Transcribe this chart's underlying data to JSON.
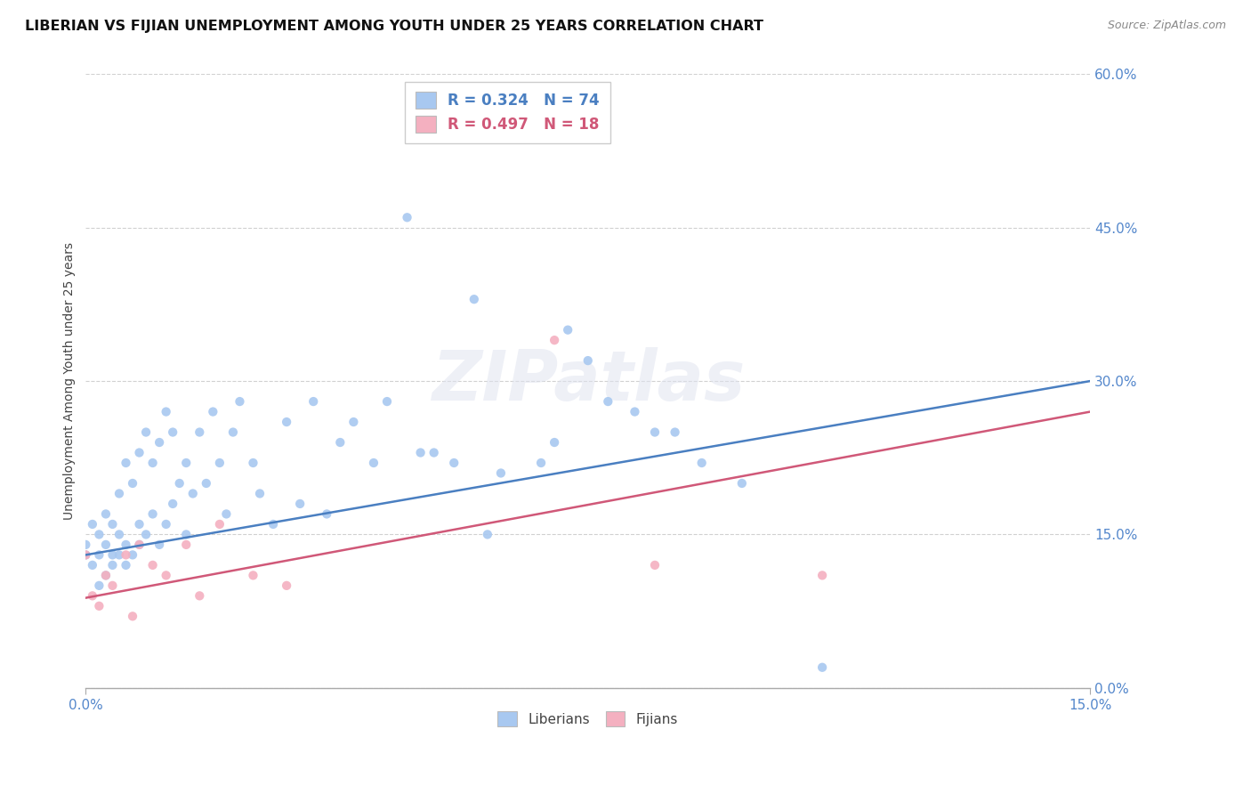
{
  "title": "LIBERIAN VS FIJIAN UNEMPLOYMENT AMONG YOUTH UNDER 25 YEARS CORRELATION CHART",
  "source": "Source: ZipAtlas.com",
  "ylabel_label": "Unemployment Among Youth under 25 years",
  "xlim": [
    0.0,
    0.15
  ],
  "ylim": [
    0.0,
    0.6
  ],
  "xticks": [
    0.0,
    0.15
  ],
  "yticks": [
    0.0,
    0.15,
    0.3,
    0.45,
    0.6
  ],
  "liberian_R": 0.324,
  "liberian_N": 74,
  "fijian_R": 0.497,
  "fijian_N": 18,
  "liberian_color": "#a8c8f0",
  "fijian_color": "#f4b0c0",
  "liberian_line_color": "#4a7fc1",
  "fijian_line_color": "#d05878",
  "lib_line_x0": 0.0,
  "lib_line_y0": 0.13,
  "lib_line_x1": 0.15,
  "lib_line_y1": 0.3,
  "fij_line_x0": 0.0,
  "fij_line_y0": 0.088,
  "fij_line_x1": 0.15,
  "fij_line_y1": 0.27,
  "liberian_x": [
    0.0,
    0.0,
    0.001,
    0.001,
    0.002,
    0.002,
    0.002,
    0.003,
    0.003,
    0.003,
    0.004,
    0.004,
    0.004,
    0.005,
    0.005,
    0.005,
    0.006,
    0.006,
    0.006,
    0.007,
    0.007,
    0.008,
    0.008,
    0.008,
    0.009,
    0.009,
    0.01,
    0.01,
    0.011,
    0.011,
    0.012,
    0.012,
    0.013,
    0.013,
    0.014,
    0.015,
    0.015,
    0.016,
    0.017,
    0.018,
    0.019,
    0.02,
    0.021,
    0.022,
    0.023,
    0.025,
    0.026,
    0.028,
    0.03,
    0.032,
    0.034,
    0.036,
    0.038,
    0.04,
    0.043,
    0.045,
    0.048,
    0.05,
    0.055,
    0.058,
    0.062,
    0.068,
    0.072,
    0.078,
    0.082,
    0.088,
    0.092,
    0.098,
    0.052,
    0.06,
    0.07,
    0.075,
    0.085,
    0.11
  ],
  "liberian_y": [
    0.13,
    0.14,
    0.12,
    0.16,
    0.13,
    0.15,
    0.1,
    0.14,
    0.17,
    0.11,
    0.13,
    0.16,
    0.12,
    0.15,
    0.13,
    0.19,
    0.14,
    0.22,
    0.12,
    0.13,
    0.2,
    0.16,
    0.14,
    0.23,
    0.15,
    0.25,
    0.17,
    0.22,
    0.24,
    0.14,
    0.16,
    0.27,
    0.18,
    0.25,
    0.2,
    0.22,
    0.15,
    0.19,
    0.25,
    0.2,
    0.27,
    0.22,
    0.17,
    0.25,
    0.28,
    0.22,
    0.19,
    0.16,
    0.26,
    0.18,
    0.28,
    0.17,
    0.24,
    0.26,
    0.22,
    0.28,
    0.46,
    0.23,
    0.22,
    0.38,
    0.21,
    0.22,
    0.35,
    0.28,
    0.27,
    0.25,
    0.22,
    0.2,
    0.23,
    0.15,
    0.24,
    0.32,
    0.25,
    0.02
  ],
  "fijian_x": [
    0.0,
    0.001,
    0.002,
    0.003,
    0.004,
    0.006,
    0.007,
    0.008,
    0.01,
    0.012,
    0.015,
    0.017,
    0.02,
    0.025,
    0.03,
    0.07,
    0.085,
    0.11
  ],
  "fijian_y": [
    0.13,
    0.09,
    0.08,
    0.11,
    0.1,
    0.13,
    0.07,
    0.14,
    0.12,
    0.11,
    0.14,
    0.09,
    0.16,
    0.11,
    0.1,
    0.34,
    0.12,
    0.11
  ]
}
